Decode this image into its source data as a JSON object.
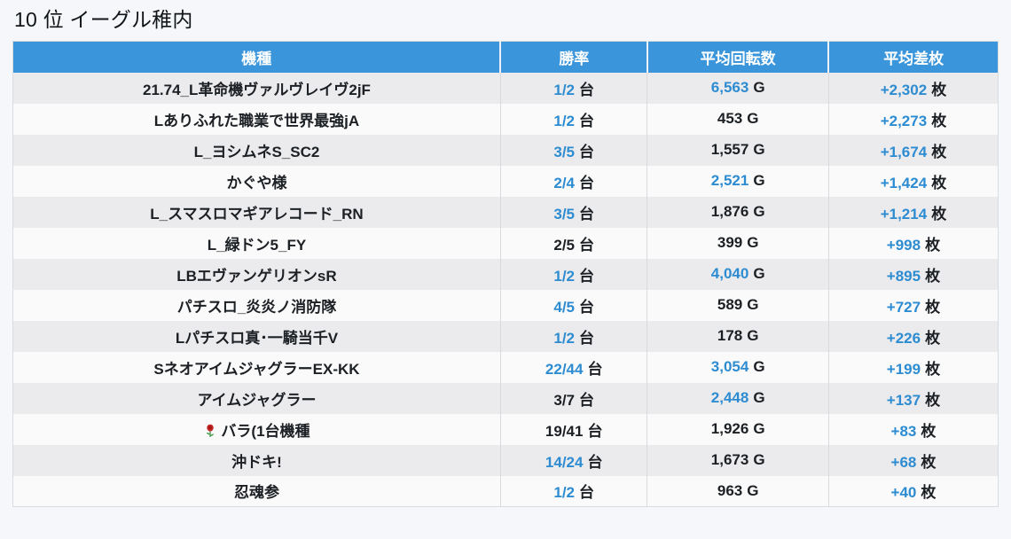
{
  "page": {
    "title": "10 位 イーグル稚内"
  },
  "colors": {
    "header_bg": "#3a95da",
    "header_text": "#ffffff",
    "accent_blue": "#2d8cd1",
    "text_dark": "#1c2024",
    "row_odd_bg": "#ebebed",
    "row_even_bg": "#fafafa",
    "table_border": "#d9dde2",
    "page_bg": "#f5f7fa"
  },
  "table": {
    "columns": [
      {
        "key": "machine",
        "label": "機種"
      },
      {
        "key": "win_rate",
        "label": "勝率"
      },
      {
        "key": "avg_spins",
        "label": "平均回転数"
      },
      {
        "key": "avg_diff",
        "label": "平均差枚"
      }
    ],
    "units": {
      "win_rate": "台",
      "avg_spins": "G",
      "avg_diff": "枚"
    },
    "rows": [
      {
        "machine": "21.74_L革命機ヴァルヴレイヴ2jF",
        "win_rate": "1/2",
        "win_blue": true,
        "avg_spins": "6,563",
        "spins_blue": true,
        "avg_diff": "+2,302",
        "diff_blue": true
      },
      {
        "machine": "Lありふれた職業で世界最強jA",
        "win_rate": "1/2",
        "win_blue": true,
        "avg_spins": "453",
        "spins_blue": false,
        "avg_diff": "+2,273",
        "diff_blue": true
      },
      {
        "machine": "L_ヨシムネS_SC2",
        "win_rate": "3/5",
        "win_blue": true,
        "avg_spins": "1,557",
        "spins_blue": false,
        "avg_diff": "+1,674",
        "diff_blue": true
      },
      {
        "machine": "かぐや様",
        "win_rate": "2/4",
        "win_blue": true,
        "avg_spins": "2,521",
        "spins_blue": true,
        "avg_diff": "+1,424",
        "diff_blue": true
      },
      {
        "machine": "L_スマスロマギアレコード_RN",
        "win_rate": "3/5",
        "win_blue": true,
        "avg_spins": "1,876",
        "spins_blue": false,
        "avg_diff": "+1,214",
        "diff_blue": true
      },
      {
        "machine": "L_緑ドン5_FY",
        "win_rate": "2/5",
        "win_blue": false,
        "avg_spins": "399",
        "spins_blue": false,
        "avg_diff": "+998",
        "diff_blue": true
      },
      {
        "machine": "LBエヴァンゲリオンsR",
        "win_rate": "1/2",
        "win_blue": true,
        "avg_spins": "4,040",
        "spins_blue": true,
        "avg_diff": "+895",
        "diff_blue": true
      },
      {
        "machine": "パチスロ_炎炎ノ消防隊",
        "win_rate": "4/5",
        "win_blue": true,
        "avg_spins": "589",
        "spins_blue": false,
        "avg_diff": "+727",
        "diff_blue": true
      },
      {
        "machine": "Lパチスロ真･一騎当千V",
        "win_rate": "1/2",
        "win_blue": true,
        "avg_spins": "178",
        "spins_blue": false,
        "avg_diff": "+226",
        "diff_blue": true
      },
      {
        "machine": "SネオアイムジャグラーEX-KK",
        "win_rate": "22/44",
        "win_blue": true,
        "avg_spins": "3,054",
        "spins_blue": true,
        "avg_diff": "+199",
        "diff_blue": true
      },
      {
        "machine": "アイムジャグラー",
        "win_rate": "3/7",
        "win_blue": false,
        "avg_spins": "2,448",
        "spins_blue": true,
        "avg_diff": "+137",
        "diff_blue": true
      },
      {
        "machine": "バラ(1台機種",
        "icon": "rose-icon",
        "win_rate": "19/41",
        "win_blue": false,
        "avg_spins": "1,926",
        "spins_blue": false,
        "avg_diff": "+83",
        "diff_blue": true
      },
      {
        "machine": "沖ドキ!",
        "win_rate": "14/24",
        "win_blue": true,
        "avg_spins": "1,673",
        "spins_blue": false,
        "avg_diff": "+68",
        "diff_blue": true
      },
      {
        "machine": "忍魂参",
        "win_rate": "1/2",
        "win_blue": true,
        "avg_spins": "963",
        "spins_blue": false,
        "avg_diff": "+40",
        "diff_blue": true
      }
    ]
  }
}
